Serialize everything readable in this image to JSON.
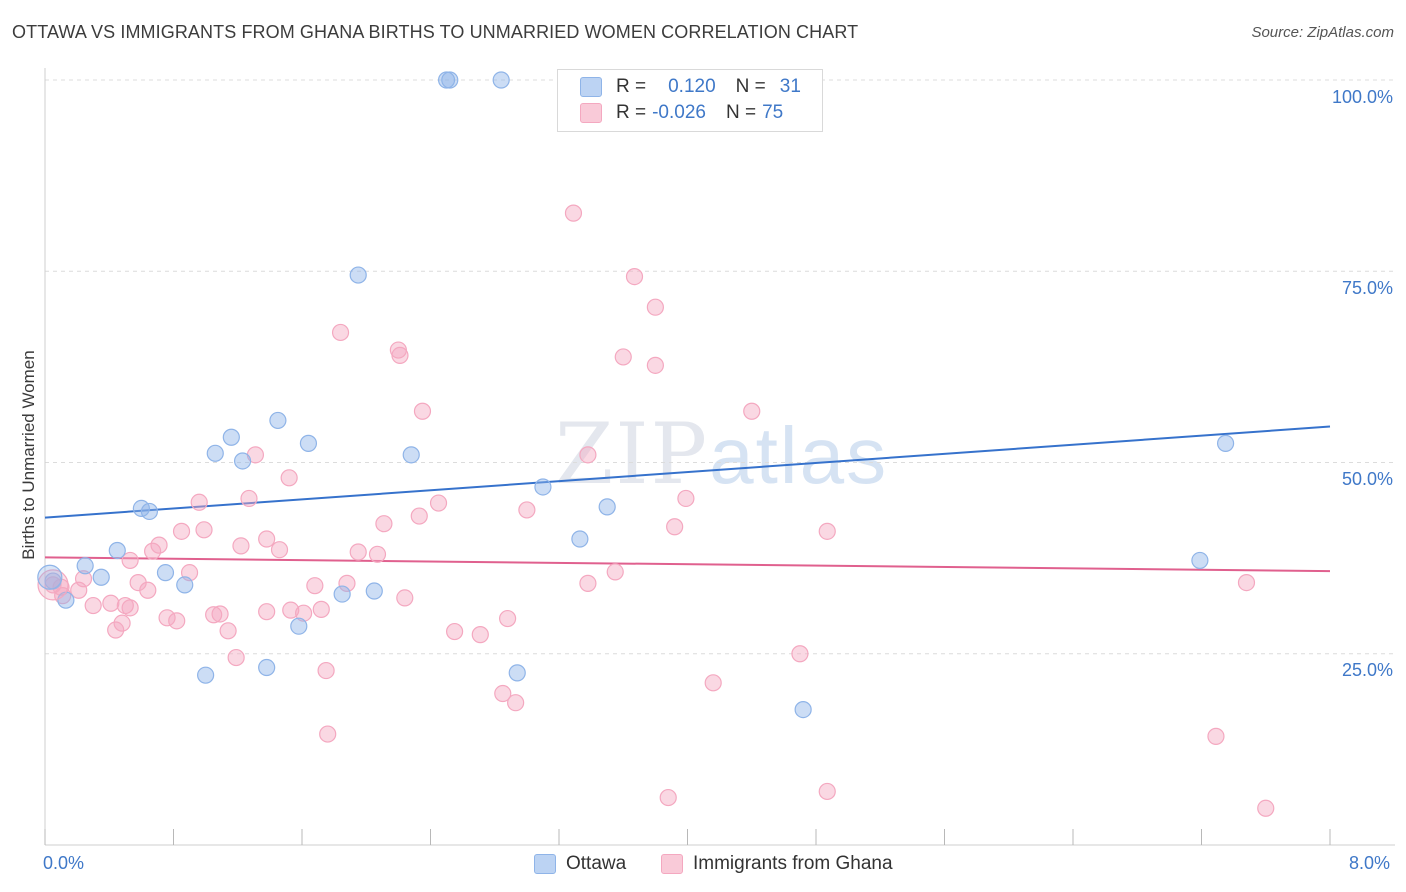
{
  "header": {
    "title": "OTTAWA VS IMMIGRANTS FROM GHANA BIRTHS TO UNMARRIED WOMEN CORRELATION CHART",
    "source": "Source: ZipAtlas.com"
  },
  "watermark": {
    "zip": "ZIP",
    "atlas": "atlas"
  },
  "legend": {
    "rows": [
      {
        "r_label": "R =",
        "r_value": "0.120",
        "n_label": "N =",
        "n_value": "31"
      },
      {
        "r_label": "R =",
        "r_value": "-0.026",
        "n_label": "N =",
        "n_value": "75"
      }
    ]
  },
  "chart_data": {
    "type": "scatter",
    "title": "OTTAWA VS IMMIGRANTS FROM GHANA BIRTHS TO UNMARRIED WOMEN CORRELATION CHART",
    "xlabel": "",
    "ylabel": "Births to Unmarried Women",
    "xlim": [
      0,
      8
    ],
    "ylim": [
      0,
      100
    ],
    "x_tick_labels": [
      "0.0%",
      "8.0%"
    ],
    "y_ticks": [
      25,
      50,
      75,
      100
    ],
    "y_tick_labels": [
      "25.0%",
      "50.0%",
      "75.0%",
      "100.0%"
    ],
    "grid": true,
    "legend_position": "top-center",
    "series": [
      {
        "name": "Ottawa",
        "color": "#8fb4e8",
        "line_color": "#3672cc",
        "R": 0.12,
        "N": 31,
        "trend": [
          [
            0,
            42.8
          ],
          [
            8,
            54.7
          ]
        ],
        "points": [
          [
            2.5,
            100
          ],
          [
            2.52,
            100
          ],
          [
            2.84,
            100
          ],
          [
            1.95,
            74.5
          ],
          [
            1.45,
            55.5
          ],
          [
            1.64,
            52.5
          ],
          [
            1.16,
            53.3
          ],
          [
            1.06,
            51.2
          ],
          [
            1.23,
            50.2
          ],
          [
            2.28,
            51.0
          ],
          [
            7.35,
            52.5
          ],
          [
            3.1,
            46.8
          ],
          [
            0.6,
            44.0
          ],
          [
            0.65,
            43.6
          ],
          [
            3.5,
            44.2
          ],
          [
            3.33,
            40.0
          ],
          [
            0.45,
            38.5
          ],
          [
            0.25,
            36.5
          ],
          [
            0.75,
            35.6
          ],
          [
            0.87,
            34.0
          ],
          [
            2.05,
            33.2
          ],
          [
            0.35,
            35.0
          ],
          [
            1.85,
            32.8
          ],
          [
            0.13,
            32.0
          ],
          [
            7.19,
            37.2
          ],
          [
            1.58,
            28.6
          ],
          [
            1.38,
            23.2
          ],
          [
            1.0,
            22.2
          ],
          [
            2.94,
            22.5
          ],
          [
            4.72,
            17.7
          ],
          [
            0.05,
            34.5
          ]
        ]
      },
      {
        "name": "Immigrants from Ghana",
        "color": "#f4a8c0",
        "line_color": "#e0608e",
        "R": -0.026,
        "N": 75,
        "trend": [
          [
            0,
            37.6
          ],
          [
            8,
            35.8
          ]
        ],
        "points": [
          [
            3.29,
            82.6
          ],
          [
            3.67,
            74.3
          ],
          [
            3.8,
            70.3
          ],
          [
            1.84,
            67.0
          ],
          [
            2.2,
            64.7
          ],
          [
            2.21,
            64.0
          ],
          [
            3.6,
            63.8
          ],
          [
            3.8,
            62.7
          ],
          [
            2.35,
            56.7
          ],
          [
            4.4,
            56.7
          ],
          [
            1.31,
            51.0
          ],
          [
            3.38,
            51.0
          ],
          [
            1.52,
            48.0
          ],
          [
            1.27,
            45.3
          ],
          [
            3.99,
            45.3
          ],
          [
            0.96,
            44.8
          ],
          [
            2.45,
            44.7
          ],
          [
            2.33,
            43.0
          ],
          [
            3.0,
            43.8
          ],
          [
            2.11,
            42.0
          ],
          [
            3.92,
            41.6
          ],
          [
            0.99,
            41.2
          ],
          [
            0.85,
            41.0
          ],
          [
            4.87,
            41.0
          ],
          [
            0.71,
            39.2
          ],
          [
            0.67,
            38.4
          ],
          [
            1.22,
            39.1
          ],
          [
            1.38,
            40.0
          ],
          [
            1.46,
            38.6
          ],
          [
            1.95,
            38.3
          ],
          [
            2.07,
            38.0
          ],
          [
            0.53,
            37.2
          ],
          [
            3.55,
            35.7
          ],
          [
            0.9,
            35.6
          ],
          [
            0.58,
            34.3
          ],
          [
            3.38,
            34.2
          ],
          [
            1.88,
            34.2
          ],
          [
            1.68,
            33.9
          ],
          [
            7.48,
            34.3
          ],
          [
            0.64,
            33.3
          ],
          [
            0.21,
            33.3
          ],
          [
            0.11,
            32.6
          ],
          [
            0.3,
            31.3
          ],
          [
            0.41,
            31.6
          ],
          [
            0.53,
            31.0
          ],
          [
            0.5,
            31.3
          ],
          [
            1.38,
            30.5
          ],
          [
            1.72,
            30.8
          ],
          [
            2.24,
            32.3
          ],
          [
            1.53,
            30.7
          ],
          [
            1.05,
            30.1
          ],
          [
            1.09,
            30.2
          ],
          [
            1.61,
            30.3
          ],
          [
            0.76,
            29.7
          ],
          [
            0.82,
            29.3
          ],
          [
            2.88,
            29.6
          ],
          [
            0.48,
            29.0
          ],
          [
            0.44,
            28.1
          ],
          [
            1.14,
            28.0
          ],
          [
            2.55,
            27.9
          ],
          [
            2.71,
            27.5
          ],
          [
            0.24,
            34.8
          ],
          [
            0.05,
            34.0
          ],
          [
            0.1,
            33.7
          ],
          [
            4.7,
            25.0
          ],
          [
            1.19,
            24.5
          ],
          [
            1.75,
            22.8
          ],
          [
            4.16,
            21.2
          ],
          [
            2.85,
            19.8
          ],
          [
            2.93,
            18.6
          ],
          [
            1.76,
            14.5
          ],
          [
            7.29,
            14.2
          ],
          [
            4.87,
            7.0
          ],
          [
            3.88,
            6.2
          ],
          [
            7.6,
            4.8
          ]
        ]
      }
    ]
  }
}
